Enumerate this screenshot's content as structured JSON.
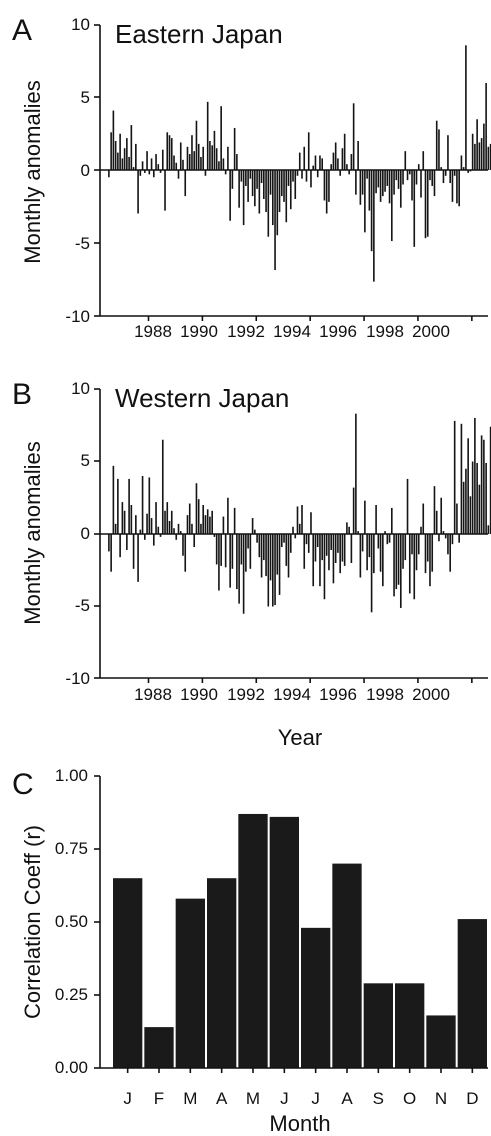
{
  "chart_data": [
    {
      "panel": "A",
      "type": "bar",
      "title": "Eastern Japan",
      "ylabel": "Monthly anomalies",
      "xlabel": "",
      "ylim": [
        -10,
        10
      ],
      "yticks": [
        "10",
        "5",
        "0",
        "-5",
        "-10"
      ],
      "xlim": [
        1986.7,
        2001.1
      ],
      "xticks": [
        "1988",
        "1990",
        "1992",
        "1994",
        "1996",
        "1998",
        "2000"
      ],
      "start_month": "1987-01",
      "values": [
        -0.5,
        2.6,
        4.1,
        2.0,
        1.2,
        2.5,
        0.8,
        1.5,
        2.2,
        0.9,
        3.1,
        0.2,
        1.8,
        -3.0,
        -0.4,
        0.6,
        -0.2,
        1.3,
        -0.3,
        0.8,
        -0.5,
        1.1,
        0.4,
        -0.2,
        1.4,
        -2.8,
        2.6,
        2.4,
        2.2,
        1.0,
        0.5,
        -0.6,
        1.9,
        0.7,
        -1.8,
        1.6,
        1.1,
        2.4,
        1.3,
        3.4,
        1.8,
        0.9,
        1.6,
        -0.4,
        4.7,
        2.0,
        1.7,
        2.7,
        1.5,
        0.6,
        4.4,
        0.8,
        -0.3,
        1.6,
        -3.5,
        -1.3,
        2.9,
        1.1,
        -2.6,
        -0.8,
        -3.8,
        -1.1,
        -2.2,
        -0.6,
        -1.8,
        -2.5,
        -1.3,
        -3.0,
        -0.9,
        -2.0,
        -2.9,
        -4.6,
        -1.7,
        -3.8,
        -6.9,
        -4.5,
        -2.9,
        -1.8,
        -2.2,
        -3.6,
        -1.1,
        -2.7,
        -0.8,
        -2.0,
        -0.4,
        1.2,
        -0.6,
        1.6,
        -0.8,
        2.6,
        -1.2,
        0.3,
        1.0,
        -0.5,
        1.0,
        0.8,
        -2.1,
        -3.0,
        -2.2,
        0.4,
        1.2,
        1.9,
        0.8,
        -0.4,
        1.5,
        2.5,
        0.4,
        -0.3,
        1.1,
        4.6,
        -1.7,
        2.0,
        -2.4,
        -1.7,
        -4.3,
        -0.6,
        -2.8,
        -5.6,
        -7.7,
        -1.6,
        -1.2,
        -2.2,
        -1.8,
        -1.5,
        -1.1,
        -2.3,
        -4.9,
        -1.7,
        -0.7,
        -1.3,
        -2.6,
        -1.0,
        1.3,
        -0.7,
        -0.3,
        -2.1,
        -5.3,
        -1.0,
        0.4,
        -1.9,
        1.3,
        -4.7,
        -4.6,
        -0.7,
        -1.1,
        -1.8,
        3.4,
        2.8,
        0.2,
        -0.9,
        -0.4,
        2.4,
        -0.9,
        -2.2,
        -0.4,
        -2.3,
        -2.5,
        1.0,
        0.2,
        8.6,
        -0.2,
        -0.1,
        2.5,
        1.8,
        3.5,
        1.9,
        2.2,
        3.2,
        6.0,
        1.6,
        1.8,
        6.2,
        0.6,
        3.3,
        6.3
      ]
    },
    {
      "panel": "B",
      "type": "bar",
      "title": "Western Japan",
      "ylabel": "Monthly anomalies",
      "xlabel": "Year",
      "ylim": [
        -10,
        10
      ],
      "yticks": [
        "10",
        "5",
        "0",
        "-5",
        "-10"
      ],
      "xlim": [
        1986.7,
        2001.1
      ],
      "xticks": [
        "1988",
        "1990",
        "1992",
        "1994",
        "1996",
        "1998",
        "2000"
      ],
      "start_month": "1987-01",
      "values": [
        -1.2,
        -2.6,
        4.7,
        0.7,
        3.8,
        -1.6,
        2.2,
        1.6,
        -1.1,
        3.8,
        2.0,
        -2.4,
        1.3,
        -3.3,
        0.3,
        4.0,
        -0.4,
        1.4,
        3.9,
        1.1,
        -0.8,
        2.2,
        0.5,
        -0.2,
        6.5,
        1.6,
        2.2,
        0.9,
        1.6,
        0.4,
        -0.4,
        0.7,
        0.2,
        -1.5,
        -2.6,
        1.3,
        2.1,
        0.7,
        -0.9,
        3.5,
        2.4,
        0.7,
        2.0,
        1.3,
        1.7,
        1.2,
        1.6,
        -0.2,
        -2.1,
        -3.9,
        -2.2,
        1.2,
        -2.3,
        2.5,
        -3.7,
        -2.4,
        1.8,
        -3.8,
        -4.8,
        -2.1,
        -5.5,
        -2.6,
        -1.0,
        -2.4,
        1.1,
        0.3,
        -0.6,
        -1.6,
        -3.0,
        -1.8,
        -2.9,
        -5.0,
        -3.2,
        -5.0,
        -4.9,
        -2.8,
        -4.2,
        -0.9,
        -0.6,
        -2.2,
        -3.0,
        -1.3,
        0.5,
        -0.3,
        1.9,
        0.7,
        2.0,
        -2.4,
        -0.7,
        -1.3,
        1.5,
        -3.6,
        -1.9,
        -0.9,
        -3.6,
        -1.8,
        -4.5,
        -1.5,
        -2.5,
        -1.1,
        -3.4,
        -2.0,
        -1.3,
        -2.7,
        -1.9,
        -2.2,
        0.8,
        0.5,
        -2.0,
        3.2,
        8.3,
        0.2,
        -3.0,
        -1.2,
        2.3,
        -2.5,
        -1.6,
        -5.4,
        -2.7,
        2.0,
        -1.0,
        -2.6,
        -3.6,
        0.2,
        -0.7,
        -0.6,
        1.8,
        -4.3,
        -3.8,
        -3.5,
        -5.1,
        -2.4,
        -1.8,
        3.8,
        -4.1,
        -1.4,
        -4.5,
        -2.5,
        -1.4,
        0.5,
        2.1,
        -2.7,
        -1.9,
        -3.6,
        -2.6,
        3.3,
        1.6,
        -0.5,
        2.5,
        0.2,
        -0.3,
        -1.4,
        -2.6,
        -0.7,
        7.8,
        2.1,
        -0.6,
        7.6,
        3.6,
        4.5,
        6.6,
        2.6,
        5.0,
        8.0,
        4.9,
        3.4,
        6.8,
        6.5,
        4.9,
        0.6,
        7.4,
        3.4,
        2.0,
        6.6,
        6.5
      ]
    },
    {
      "panel": "C",
      "type": "bar",
      "title": "",
      "ylabel": "Correlation Coeff (r)",
      "xlabel": "Month",
      "ylim": [
        0,
        1
      ],
      "yticks": [
        "1.00",
        "0.75",
        "0.50",
        "0.25",
        "0.00"
      ],
      "categories": [
        "J",
        "F",
        "M",
        "A",
        "M",
        "J",
        "J",
        "A",
        "S",
        "O",
        "N",
        "D"
      ],
      "values": [
        0.65,
        0.14,
        0.58,
        0.65,
        0.87,
        0.86,
        0.48,
        0.7,
        0.29,
        0.29,
        0.18,
        0.51
      ]
    }
  ]
}
